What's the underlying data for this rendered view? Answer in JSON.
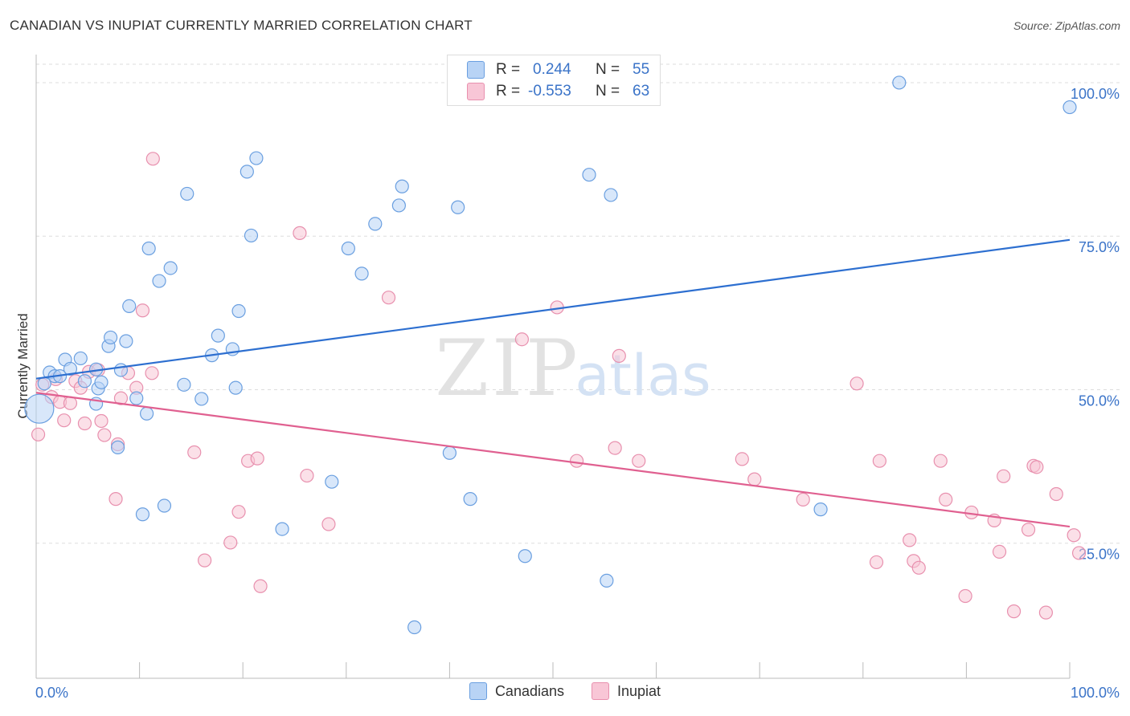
{
  "title": "CANADIAN VS INUPIAT CURRENTLY MARRIED CORRELATION CHART",
  "source": "Source: ZipAtlas.com",
  "watermark_zip": "ZIP",
  "watermark_atlas": "atlas",
  "stats": {
    "r_label": "R =",
    "n_label": "N =",
    "canadians": {
      "r": "0.244",
      "n": "55"
    },
    "inupiat": {
      "r": "-0.553",
      "n": "63"
    }
  },
  "colors": {
    "canadians_fill": "#b8d3f5",
    "canadians_stroke": "#6a9fe0",
    "canadians_line": "#2d6fd0",
    "inupiat_fill": "#f8c6d6",
    "inupiat_stroke": "#e890ae",
    "inupiat_line": "#e06090",
    "tick_label": "#3a73c8",
    "grid": "#dddddd"
  },
  "chart_data": {
    "type": "scatter",
    "title": "CANADIAN VS INUPIAT CURRENTLY MARRIED CORRELATION CHART",
    "xlabel": "",
    "ylabel": "Currently Married",
    "xlim": [
      0,
      100
    ],
    "ylim": [
      3,
      103
    ],
    "x_tick_labels": [
      "0.0%",
      "100.0%"
    ],
    "y_ticks": [
      25,
      50,
      75,
      100
    ],
    "y_tick_labels": [
      "25.0%",
      "50.0%",
      "75.0%",
      "100.0%"
    ],
    "grid": true,
    "legend_position": "bottom-center",
    "series": [
      {
        "name": "Canadians",
        "trend": {
          "x": [
            0,
            100
          ],
          "y": [
            51.8,
            74.4
          ]
        },
        "points": [
          [
            0.3,
            46.9
          ],
          [
            0.8,
            51.0
          ],
          [
            1.3,
            52.8
          ],
          [
            1.8,
            52.2
          ],
          [
            2.3,
            52.2
          ],
          [
            2.8,
            54.9
          ],
          [
            3.3,
            53.4
          ],
          [
            4.3,
            55.1
          ],
          [
            4.7,
            51.4
          ],
          [
            5.8,
            47.7
          ],
          [
            5.8,
            53.3
          ],
          [
            6.0,
            50.2
          ],
          [
            6.3,
            51.2
          ],
          [
            7.0,
            57.1
          ],
          [
            7.2,
            58.5
          ],
          [
            7.9,
            40.6
          ],
          [
            8.2,
            53.2
          ],
          [
            8.7,
            57.9
          ],
          [
            9.0,
            63.6
          ],
          [
            9.7,
            48.6
          ],
          [
            10.3,
            29.7
          ],
          [
            10.7,
            46.1
          ],
          [
            10.9,
            73.0
          ],
          [
            11.9,
            67.7
          ],
          [
            12.4,
            31.1
          ],
          [
            13.0,
            69.8
          ],
          [
            14.3,
            50.8
          ],
          [
            14.6,
            81.9
          ],
          [
            16.0,
            48.5
          ],
          [
            17.0,
            55.6
          ],
          [
            17.6,
            58.8
          ],
          [
            19.0,
            56.6
          ],
          [
            19.3,
            50.3
          ],
          [
            19.6,
            62.8
          ],
          [
            20.4,
            85.5
          ],
          [
            20.8,
            75.1
          ],
          [
            21.3,
            87.7
          ],
          [
            23.8,
            27.3
          ],
          [
            28.6,
            35.0
          ],
          [
            30.2,
            73.0
          ],
          [
            31.5,
            68.9
          ],
          [
            32.8,
            77.0
          ],
          [
            35.1,
            80.0
          ],
          [
            35.4,
            83.1
          ],
          [
            36.6,
            11.3
          ],
          [
            40.0,
            39.7
          ],
          [
            40.8,
            79.7
          ],
          [
            42.0,
            32.2
          ],
          [
            47.3,
            22.9
          ],
          [
            53.5,
            85.0
          ],
          [
            55.6,
            81.7
          ],
          [
            55.2,
            18.9
          ],
          [
            75.9,
            30.5
          ],
          [
            83.5,
            100.0
          ],
          [
            100.0,
            96.0
          ]
        ]
      },
      {
        "name": "Inupiat",
        "trend": {
          "x": [
            0,
            100
          ],
          "y": [
            49.5,
            27.7
          ]
        },
        "points": [
          [
            0.2,
            42.7
          ],
          [
            0.6,
            50.8
          ],
          [
            1.5,
            48.8
          ],
          [
            1.9,
            51.7
          ],
          [
            2.3,
            48.0
          ],
          [
            2.7,
            45.0
          ],
          [
            3.3,
            47.8
          ],
          [
            3.8,
            51.4
          ],
          [
            4.3,
            50.3
          ],
          [
            4.7,
            44.5
          ],
          [
            5.1,
            52.9
          ],
          [
            6.0,
            53.2
          ],
          [
            6.3,
            44.9
          ],
          [
            6.6,
            42.6
          ],
          [
            7.7,
            32.2
          ],
          [
            7.9,
            41.1
          ],
          [
            8.2,
            48.6
          ],
          [
            8.9,
            52.7
          ],
          [
            9.7,
            50.3
          ],
          [
            10.3,
            62.9
          ],
          [
            11.2,
            52.7
          ],
          [
            11.3,
            87.6
          ],
          [
            15.3,
            39.8
          ],
          [
            16.3,
            22.2
          ],
          [
            18.8,
            25.1
          ],
          [
            19.6,
            30.1
          ],
          [
            20.5,
            38.4
          ],
          [
            21.4,
            38.8
          ],
          [
            21.7,
            18.0
          ],
          [
            25.5,
            75.5
          ],
          [
            26.2,
            36.0
          ],
          [
            28.3,
            28.1
          ],
          [
            34.1,
            65.0
          ],
          [
            47.0,
            58.2
          ],
          [
            50.4,
            63.4
          ],
          [
            52.3,
            38.4
          ],
          [
            56.0,
            40.5
          ],
          [
            56.4,
            55.5
          ],
          [
            58.3,
            38.4
          ],
          [
            68.3,
            38.7
          ],
          [
            69.5,
            35.4
          ],
          [
            74.2,
            32.1
          ],
          [
            79.4,
            51.0
          ],
          [
            81.3,
            21.9
          ],
          [
            81.6,
            38.4
          ],
          [
            84.5,
            25.5
          ],
          [
            84.9,
            22.1
          ],
          [
            85.4,
            21.0
          ],
          [
            87.5,
            38.4
          ],
          [
            88.0,
            32.1
          ],
          [
            89.9,
            16.4
          ],
          [
            90.5,
            30.0
          ],
          [
            92.7,
            28.7
          ],
          [
            93.2,
            23.6
          ],
          [
            93.6,
            35.9
          ],
          [
            94.6,
            13.9
          ],
          [
            96.0,
            27.2
          ],
          [
            96.5,
            37.6
          ],
          [
            96.8,
            37.4
          ],
          [
            97.7,
            13.7
          ],
          [
            98.7,
            33.0
          ],
          [
            100.4,
            26.3
          ],
          [
            100.9,
            23.4
          ]
        ]
      }
    ]
  },
  "legend": {
    "canadians": "Canadians",
    "inupiat": "Inupiat"
  }
}
